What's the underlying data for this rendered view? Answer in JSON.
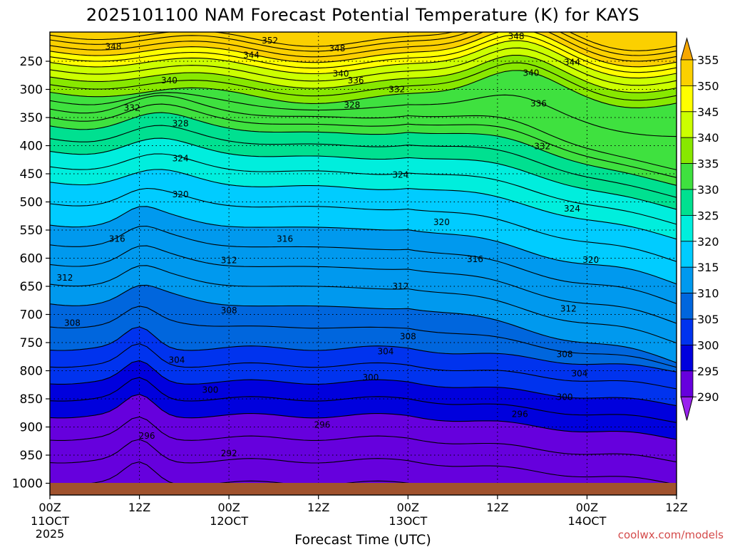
{
  "chart_data": {
    "type": "heatmap",
    "title": "2025101100 NAM Forecast Potential Temperature (K) for KAYS",
    "xlabel": "Forecast Time (UTC)",
    "ylabel": "",
    "credit": "coolwx.com/models",
    "units": "K",
    "x_ticks": [
      {
        "label": "00Z",
        "sub": "11OCT",
        "sub2": "2025"
      },
      {
        "label": "12Z",
        "sub": "",
        "sub2": ""
      },
      {
        "label": "00Z",
        "sub": "12OCT",
        "sub2": ""
      },
      {
        "label": "12Z",
        "sub": "",
        "sub2": ""
      },
      {
        "label": "00Z",
        "sub": "13OCT",
        "sub2": ""
      },
      {
        "label": "12Z",
        "sub": "",
        "sub2": ""
      },
      {
        "label": "00Z",
        "sub": "14OCT",
        "sub2": ""
      },
      {
        "label": "12Z",
        "sub": "",
        "sub2": ""
      }
    ],
    "y_ticks": [
      "250",
      "300",
      "350",
      "400",
      "450",
      "500",
      "550",
      "600",
      "650",
      "700",
      "750",
      "800",
      "850",
      "900",
      "950",
      "1000"
    ],
    "y_range_hpa": [
      200,
      1000
    ],
    "x_range_hours": [
      0,
      84
    ],
    "colorbar": {
      "levels": [
        "355",
        "350",
        "345",
        "340",
        "335",
        "330",
        "325",
        "320",
        "315",
        "310",
        "305",
        "300",
        "295",
        "290"
      ],
      "colors": [
        "#f7a800",
        "#fbd000",
        "#ffff00",
        "#ccff00",
        "#88e800",
        "#3fe13f",
        "#00e090",
        "#00eedd",
        "#00ccff",
        "#0099ee",
        "#0066dd",
        "#0033ee",
        "#0000dd",
        "#6600dd",
        "#9922ee"
      ]
    },
    "contour_labels": [
      {
        "text": "352",
        "t": 29.5,
        "p": 213
      },
      {
        "text": "348",
        "t": 8.5,
        "p": 224
      },
      {
        "text": "348",
        "t": 38.5,
        "p": 227
      },
      {
        "text": "348",
        "t": 62.5,
        "p": 206
      },
      {
        "text": "344",
        "t": 27,
        "p": 239
      },
      {
        "text": "344",
        "t": 70,
        "p": 252
      },
      {
        "text": "340",
        "t": 16,
        "p": 284
      },
      {
        "text": "340",
        "t": 39,
        "p": 272
      },
      {
        "text": "340",
        "t": 64.5,
        "p": 271
      },
      {
        "text": "336",
        "t": 41,
        "p": 284
      },
      {
        "text": "336",
        "t": 65.5,
        "p": 325
      },
      {
        "text": "332",
        "t": 11,
        "p": 333
      },
      {
        "text": "332",
        "t": 46.5,
        "p": 300
      },
      {
        "text": "332",
        "t": 66,
        "p": 401
      },
      {
        "text": "328",
        "t": 17.5,
        "p": 361
      },
      {
        "text": "328",
        "t": 40.5,
        "p": 328
      },
      {
        "text": "324",
        "t": 17.5,
        "p": 423
      },
      {
        "text": "324",
        "t": 47,
        "p": 452
      },
      {
        "text": "324",
        "t": 70,
        "p": 512
      },
      {
        "text": "320",
        "t": 17.5,
        "p": 487
      },
      {
        "text": "320",
        "t": 52.5,
        "p": 536
      },
      {
        "text": "320",
        "t": 72.5,
        "p": 603
      },
      {
        "text": "316",
        "t": 9,
        "p": 566
      },
      {
        "text": "316",
        "t": 31.5,
        "p": 566
      },
      {
        "text": "316",
        "t": 57,
        "p": 602
      },
      {
        "text": "312",
        "t": 2,
        "p": 635
      },
      {
        "text": "312",
        "t": 24,
        "p": 604
      },
      {
        "text": "312",
        "t": 47,
        "p": 650
      },
      {
        "text": "312",
        "t": 69.5,
        "p": 690
      },
      {
        "text": "308",
        "t": 3,
        "p": 715
      },
      {
        "text": "308",
        "t": 24,
        "p": 693
      },
      {
        "text": "308",
        "t": 48,
        "p": 739
      },
      {
        "text": "308",
        "t": 69,
        "p": 771
      },
      {
        "text": "304",
        "t": 17,
        "p": 781
      },
      {
        "text": "304",
        "t": 45,
        "p": 766
      },
      {
        "text": "304",
        "t": 71,
        "p": 805
      },
      {
        "text": "300",
        "t": 21.5,
        "p": 834
      },
      {
        "text": "300",
        "t": 43,
        "p": 812
      },
      {
        "text": "300",
        "t": 69,
        "p": 847
      },
      {
        "text": "296",
        "t": 13,
        "p": 916
      },
      {
        "text": "296",
        "t": 36.5,
        "p": 896
      },
      {
        "text": "296",
        "t": 63,
        "p": 877
      },
      {
        "text": "292",
        "t": 24,
        "p": 947
      }
    ]
  }
}
